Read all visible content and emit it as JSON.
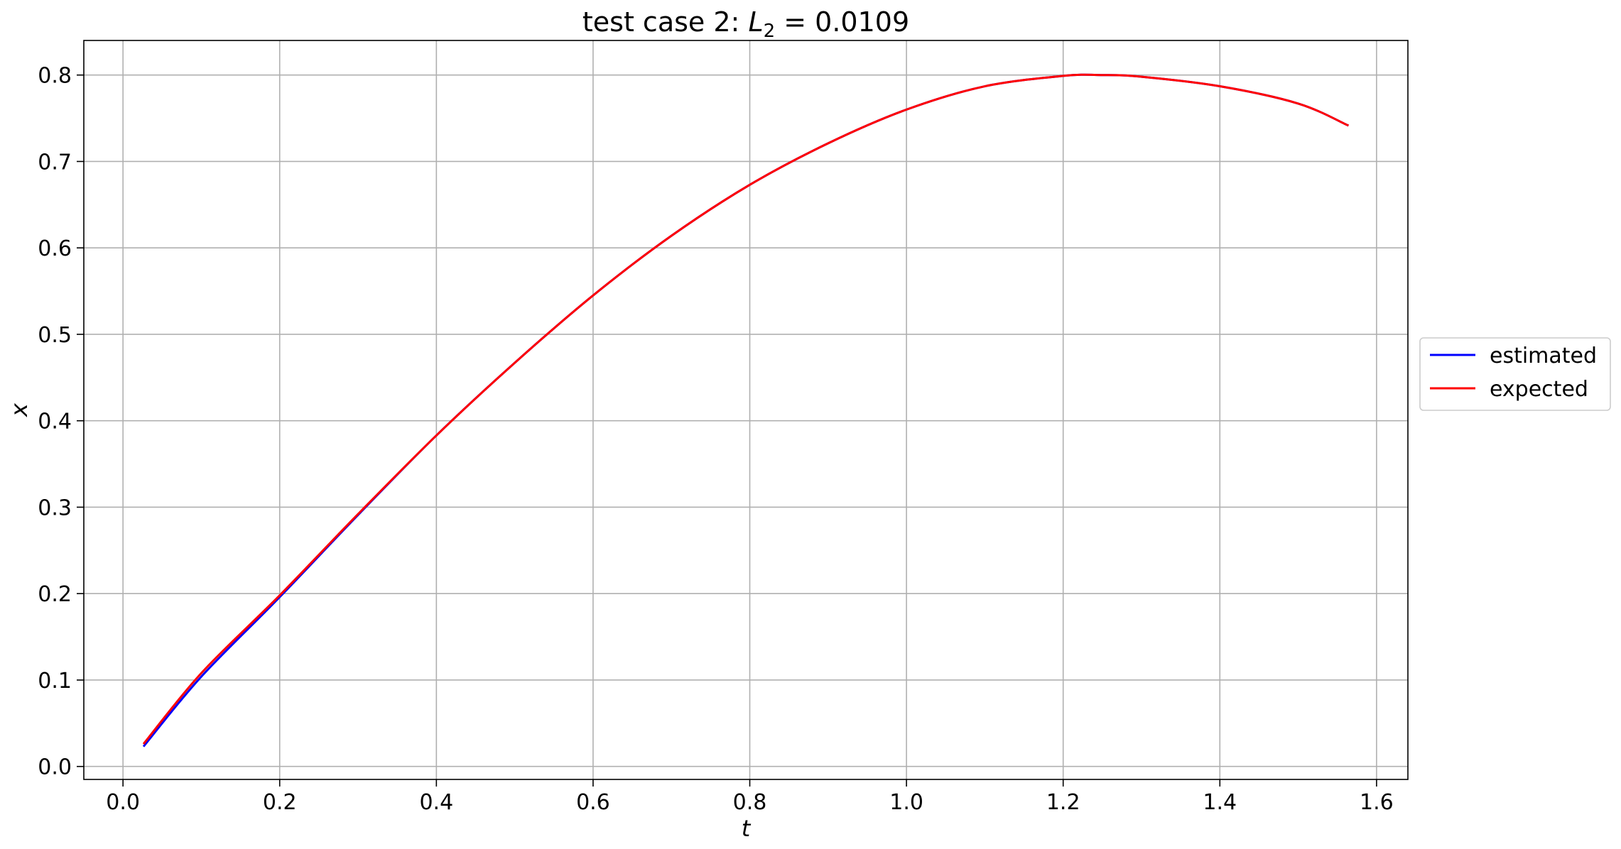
{
  "chart_data": {
    "type": "line",
    "title": {
      "prefix": "test case 2: ",
      "symbol": "L",
      "subscript": "2",
      "suffix": " = 0.0109"
    },
    "xlabel": "t",
    "ylabel": "x",
    "xlim": [
      -0.05,
      1.64
    ],
    "ylim": [
      -0.015,
      0.84
    ],
    "xticks": [
      0.0,
      0.2,
      0.4,
      0.6,
      0.8,
      1.0,
      1.2,
      1.4,
      1.6
    ],
    "xtick_labels": [
      "0.0",
      "0.2",
      "0.4",
      "0.6",
      "0.8",
      "1.0",
      "1.2",
      "1.4",
      "1.6"
    ],
    "yticks": [
      0.0,
      0.1,
      0.2,
      0.3,
      0.4,
      0.5,
      0.6,
      0.7,
      0.8
    ],
    "ytick_labels": [
      "0.0",
      "0.1",
      "0.2",
      "0.3",
      "0.4",
      "0.5",
      "0.6",
      "0.7",
      "0.8"
    ],
    "grid": true,
    "legend_position": "right, outside plot",
    "x": [
      0.027,
      0.1,
      0.2,
      0.3,
      0.4,
      0.5,
      0.6,
      0.7,
      0.8,
      0.9,
      1.0,
      1.1,
      1.2,
      1.25,
      1.3,
      1.4,
      1.5,
      1.563
    ],
    "series": [
      {
        "name": "estimated",
        "color": "#0000ff",
        "values": [
          0.024,
          0.104,
          0.196,
          0.291,
          0.383,
          0.467,
          0.545,
          0.614,
          0.673,
          0.721,
          0.76,
          0.787,
          0.799,
          0.8,
          0.798,
          0.787,
          0.767,
          0.742
        ]
      },
      {
        "name": "expected",
        "color": "#ff0000",
        "values": [
          0.027,
          0.108,
          0.198,
          0.292,
          0.383,
          0.467,
          0.545,
          0.614,
          0.673,
          0.721,
          0.76,
          0.787,
          0.799,
          0.8,
          0.798,
          0.787,
          0.767,
          0.742
        ]
      }
    ]
  }
}
